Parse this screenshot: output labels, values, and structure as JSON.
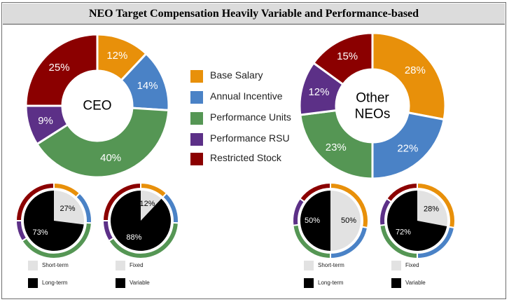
{
  "title": "NEO Target Compensation Heavily Variable and Performance-based",
  "colors": {
    "base_salary": "#e8900a",
    "annual_incentive": "#4a82c6",
    "performance_units": "#559654",
    "performance_rsu": "#5c3087",
    "restricted_stock": "#8b0000",
    "fixed_short": "#e2e2e2",
    "variable_long": "#000000"
  },
  "legend": [
    {
      "label": "Base Salary",
      "color_key": "base_salary"
    },
    {
      "label": "Annual Incentive",
      "color_key": "annual_incentive"
    },
    {
      "label": "Performance Units",
      "color_key": "performance_units"
    },
    {
      "label": "Performance RSU",
      "color_key": "performance_rsu"
    },
    {
      "label": "Restricted Stock",
      "color_key": "restricted_stock"
    }
  ],
  "chart_data": [
    {
      "type": "pie",
      "variant": "donut",
      "center_label": "CEO",
      "categories": [
        "Base Salary",
        "Annual Incentive",
        "Performance Units",
        "Performance RSU",
        "Restricted Stock"
      ],
      "values": [
        12,
        14,
        40,
        9,
        25
      ],
      "labels": [
        "12%",
        "14%",
        "40%",
        "9%",
        "25%"
      ]
    },
    {
      "type": "pie",
      "variant": "donut",
      "center_label": "Other NEOs",
      "categories": [
        "Base Salary",
        "Annual Incentive",
        "Performance Units",
        "Performance RSU",
        "Restricted Stock"
      ],
      "values": [
        28,
        22,
        23,
        12,
        15
      ],
      "labels": [
        "28%",
        "22%",
        "23%",
        "12%",
        "15%"
      ]
    },
    {
      "type": "pie",
      "group": "CEO",
      "categories": [
        "Short-term",
        "Long-term"
      ],
      "values": [
        27,
        73
      ],
      "labels": [
        "27%",
        "73%"
      ],
      "ring_values": [
        12,
        14,
        40,
        9,
        25
      ],
      "legend": [
        "Short-term",
        "Long-term"
      ]
    },
    {
      "type": "pie",
      "group": "CEO",
      "categories": [
        "Fixed",
        "Variable"
      ],
      "values": [
        12,
        88
      ],
      "labels": [
        "12%",
        "88%"
      ],
      "ring_values": [
        12,
        14,
        40,
        9,
        25
      ],
      "legend": [
        "Fixed",
        "Variable"
      ]
    },
    {
      "type": "pie",
      "group": "Other NEOs",
      "categories": [
        "Short-term",
        "Long-term"
      ],
      "values": [
        50,
        50
      ],
      "labels": [
        "50%",
        "50%"
      ],
      "ring_values": [
        28,
        22,
        23,
        12,
        15
      ],
      "legend": [
        "Short-term",
        "Long-term"
      ]
    },
    {
      "type": "pie",
      "group": "Other NEOs",
      "categories": [
        "Fixed",
        "Variable"
      ],
      "values": [
        28,
        72
      ],
      "labels": [
        "28%",
        "72%"
      ],
      "ring_values": [
        28,
        22,
        23,
        12,
        15
      ],
      "legend": [
        "Fixed",
        "Variable"
      ]
    }
  ]
}
